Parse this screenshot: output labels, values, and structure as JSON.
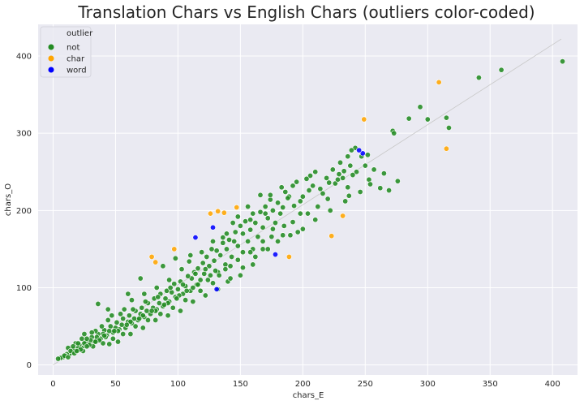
{
  "chart_data": {
    "type": "scatter",
    "title": "Translation Chars vs English Chars (outliers color-coded)",
    "xlabel": "chars_E",
    "ylabel": "chars_O",
    "xlim": [
      -12,
      420
    ],
    "ylim": [
      -13,
      441
    ],
    "xticks": [
      0,
      50,
      100,
      150,
      200,
      250,
      300,
      350,
      400
    ],
    "yticks": [
      0,
      100,
      200,
      300,
      400
    ],
    "grid": true,
    "legend": {
      "title": "outlier",
      "placement": "top-left",
      "entries": [
        {
          "label": "not",
          "color": "#228B22"
        },
        {
          "label": "char",
          "color": "#FFA500"
        },
        {
          "label": "word",
          "color": "#0000FF"
        }
      ]
    },
    "reference_line": {
      "from": [
        0,
        0
      ],
      "to": [
        407,
        422
      ]
    },
    "series": [
      {
        "name": "not",
        "color": "#228B22",
        "points": [
          [
            408,
            393
          ],
          [
            359,
            382
          ],
          [
            341,
            372
          ],
          [
            315,
            320
          ],
          [
            317,
            307
          ],
          [
            300,
            318
          ],
          [
            294,
            334
          ],
          [
            285,
            319
          ],
          [
            272,
            303
          ],
          [
            273,
            300
          ],
          [
            265,
            248
          ],
          [
            262,
            229
          ],
          [
            257,
            253
          ],
          [
            253,
            240
          ],
          [
            250,
            258
          ],
          [
            252,
            272
          ],
          [
            247,
            270
          ],
          [
            242,
            281
          ],
          [
            239,
            278
          ],
          [
            238,
            258
          ],
          [
            236,
            230
          ],
          [
            237,
            219
          ],
          [
            233,
            251
          ],
          [
            232,
            242
          ],
          [
            229,
            247
          ],
          [
            224,
            253
          ],
          [
            221,
            236
          ],
          [
            219,
            242
          ],
          [
            216,
            222
          ],
          [
            212,
            205
          ],
          [
            210,
            250
          ],
          [
            206,
            245
          ],
          [
            205,
            226
          ],
          [
            203,
            241
          ],
          [
            200,
            218
          ],
          [
            198,
            212
          ],
          [
            195,
            237
          ],
          [
            192,
            232
          ],
          [
            189,
            218
          ],
          [
            186,
            224
          ],
          [
            184,
            204
          ],
          [
            182,
            196
          ],
          [
            180,
            210
          ],
          [
            178,
            184
          ],
          [
            176,
            200
          ],
          [
            174,
            214
          ],
          [
            172,
            190
          ],
          [
            170,
            205
          ],
          [
            168,
            178
          ],
          [
            166,
            198
          ],
          [
            164,
            166
          ],
          [
            162,
            184
          ],
          [
            160,
            196
          ],
          [
            158,
            175
          ],
          [
            156,
            160
          ],
          [
            154,
            186
          ],
          [
            152,
            170
          ],
          [
            150,
            180
          ],
          [
            148,
            154
          ],
          [
            146,
            172
          ],
          [
            145,
            160
          ],
          [
            143,
            140
          ],
          [
            141,
            162
          ],
          [
            139,
            150
          ],
          [
            138,
            130
          ],
          [
            136,
            158
          ],
          [
            134,
            142
          ],
          [
            132,
            120
          ],
          [
            131,
            148
          ],
          [
            129,
            135
          ],
          [
            127,
            150
          ],
          [
            125,
            128
          ],
          [
            123,
            140
          ],
          [
            121,
            118
          ],
          [
            120,
            132
          ],
          [
            118,
            110
          ],
          [
            116,
            125
          ],
          [
            115,
            104
          ],
          [
            113,
            120
          ],
          [
            111,
            112
          ],
          [
            110,
            96
          ],
          [
            108,
            115
          ],
          [
            106,
            102
          ],
          [
            104,
            92
          ],
          [
            102,
            108
          ],
          [
            100,
            98
          ],
          [
            98,
            88
          ],
          [
            97,
            105
          ],
          [
            95,
            94
          ],
          [
            93,
            82
          ],
          [
            91,
            96
          ],
          [
            90,
            86
          ],
          [
            88,
            76
          ],
          [
            86,
            92
          ],
          [
            85,
            80
          ],
          [
            83,
            72
          ],
          [
            81,
            86
          ],
          [
            80,
            74
          ],
          [
            78,
            66
          ],
          [
            76,
            80
          ],
          [
            75,
            70
          ],
          [
            73,
            62
          ],
          [
            71,
            74
          ],
          [
            70,
            66
          ],
          [
            68,
            58
          ],
          [
            66,
            70
          ],
          [
            65,
            60
          ],
          [
            63,
            54
          ],
          [
            61,
            64
          ],
          [
            60,
            56
          ],
          [
            58,
            48
          ],
          [
            56,
            60
          ],
          [
            55,
            52
          ],
          [
            53,
            46
          ],
          [
            51,
            55
          ],
          [
            50,
            48
          ],
          [
            48,
            42
          ],
          [
            46,
            50
          ],
          [
            45,
            44
          ],
          [
            43,
            38
          ],
          [
            41,
            45
          ],
          [
            40,
            40
          ],
          [
            38,
            34
          ],
          [
            36,
            40
          ],
          [
            35,
            36
          ],
          [
            33,
            30
          ],
          [
            31,
            36
          ],
          [
            30,
            32
          ],
          [
            28,
            26
          ],
          [
            26,
            30
          ],
          [
            25,
            28
          ],
          [
            23,
            22
          ],
          [
            21,
            26
          ],
          [
            20,
            22
          ],
          [
            18,
            18
          ],
          [
            16,
            20
          ],
          [
            15,
            16
          ],
          [
            13,
            14
          ],
          [
            11,
            14
          ],
          [
            10,
            12
          ],
          [
            8,
            10
          ],
          [
            6,
            9
          ],
          [
            4,
            8
          ],
          [
            12,
            22
          ],
          [
            18,
            28
          ],
          [
            25,
            40
          ],
          [
            36,
            79
          ],
          [
            44,
            72
          ],
          [
            60,
            92
          ],
          [
            70,
            112
          ],
          [
            88,
            128
          ],
          [
            98,
            138
          ],
          [
            110,
            142
          ],
          [
            136,
            165
          ],
          [
            144,
            184
          ],
          [
            156,
            205
          ],
          [
            166,
            220
          ],
          [
            188,
            216
          ],
          [
            208,
            232
          ],
          [
            226,
            235
          ],
          [
            243,
            250
          ],
          [
            269,
            226
          ],
          [
            276,
            238
          ],
          [
            160,
            130
          ],
          [
            150,
            116
          ],
          [
            140,
            108
          ],
          [
            128,
            106
          ],
          [
            118,
            96
          ],
          [
            106,
            84
          ],
          [
            96,
            74
          ],
          [
            86,
            66
          ],
          [
            76,
            58
          ],
          [
            66,
            50
          ],
          [
            56,
            40
          ],
          [
            48,
            34
          ],
          [
            40,
            28
          ],
          [
            32,
            24
          ],
          [
            24,
            18
          ],
          [
            130,
            122
          ],
          [
            122,
            124
          ],
          [
            114,
            118
          ],
          [
            104,
            104
          ],
          [
            94,
            100
          ],
          [
            84,
            88
          ],
          [
            74,
            82
          ],
          [
            64,
            72
          ],
          [
            54,
            66
          ],
          [
            44,
            58
          ],
          [
            34,
            44
          ],
          [
            27,
            34
          ],
          [
            20,
            28
          ],
          [
            14,
            18
          ],
          [
            9,
            12
          ],
          [
            193,
            206
          ],
          [
            185,
            180
          ],
          [
            175,
            166
          ],
          [
            168,
            150
          ],
          [
            160,
            150
          ],
          [
            152,
            146
          ],
          [
            142,
            128
          ],
          [
            133,
            116
          ],
          [
            124,
            110
          ],
          [
            112,
            100
          ],
          [
            101,
            90
          ],
          [
            92,
            80
          ],
          [
            82,
            70
          ],
          [
            72,
            64
          ],
          [
            62,
            56
          ],
          [
            52,
            44
          ],
          [
            42,
            36
          ],
          [
            37,
            32
          ],
          [
            29,
            26
          ],
          [
            22,
            20
          ],
          [
            17,
            15
          ],
          [
            12,
            10
          ],
          [
            198,
            196
          ],
          [
            214,
            228
          ],
          [
            228,
            240
          ],
          [
            240,
            246
          ],
          [
            220,
            215
          ],
          [
            230,
            262
          ],
          [
            236,
            270
          ],
          [
            183,
            230
          ],
          [
            174,
            220
          ],
          [
            170,
            196
          ],
          [
            158,
            188
          ],
          [
            148,
            192
          ],
          [
            139,
            170
          ],
          [
            128,
            160
          ],
          [
            119,
            146
          ],
          [
            109,
            134
          ],
          [
            103,
            124
          ],
          [
            93,
            110
          ],
          [
            83,
            100
          ],
          [
            73,
            92
          ],
          [
            63,
            84
          ],
          [
            57,
            72
          ],
          [
            47,
            64
          ],
          [
            39,
            50
          ],
          [
            31,
            42
          ],
          [
            23,
            34
          ],
          [
            16,
            24
          ],
          [
            45,
            27
          ],
          [
            52,
            30
          ],
          [
            62,
            40
          ],
          [
            72,
            48
          ],
          [
            82,
            58
          ],
          [
            92,
            64
          ],
          [
            102,
            70
          ],
          [
            112,
            82
          ],
          [
            122,
            90
          ],
          [
            132,
            98
          ],
          [
            142,
            112
          ],
          [
            152,
            126
          ],
          [
            162,
            140
          ],
          [
            172,
            150
          ],
          [
            180,
            160
          ],
          [
            190,
            168
          ],
          [
            200,
            176
          ],
          [
            210,
            188
          ],
          [
            222,
            200
          ],
          [
            234,
            212
          ],
          [
            246,
            224
          ],
          [
            254,
            234
          ],
          [
            192,
            185
          ],
          [
            196,
            172
          ],
          [
            204,
            196
          ],
          [
            184,
            168
          ],
          [
            176,
            176
          ],
          [
            168,
            160
          ],
          [
            158,
            146
          ],
          [
            148,
            136
          ],
          [
            138,
            124
          ],
          [
            126,
            116
          ],
          [
            116,
            104
          ],
          [
            107,
            96
          ],
          [
            99,
            86
          ],
          [
            89,
            78
          ],
          [
            79,
            70
          ],
          [
            69,
            60
          ],
          [
            59,
            52
          ],
          [
            49,
            44
          ],
          [
            41,
            38
          ],
          [
            34,
            30
          ],
          [
            27,
            24
          ],
          [
            19,
            18
          ]
        ]
      },
      {
        "name": "char",
        "color": "#FFA500",
        "points": [
          [
            309,
            366
          ],
          [
            315,
            280
          ],
          [
            249,
            318
          ],
          [
            232,
            193
          ],
          [
            223,
            167
          ],
          [
            189,
            140
          ],
          [
            147,
            204
          ],
          [
            137,
            197
          ],
          [
            132,
            199
          ],
          [
            126,
            196
          ],
          [
            97,
            150
          ],
          [
            82,
            133
          ],
          [
            79,
            140
          ]
        ]
      },
      {
        "name": "word",
        "color": "#0000FF",
        "points": [
          [
            248,
            274
          ],
          [
            245,
            278
          ],
          [
            178,
            143
          ],
          [
            128,
            178
          ],
          [
            131,
            98
          ],
          [
            114,
            165
          ]
        ]
      }
    ]
  }
}
